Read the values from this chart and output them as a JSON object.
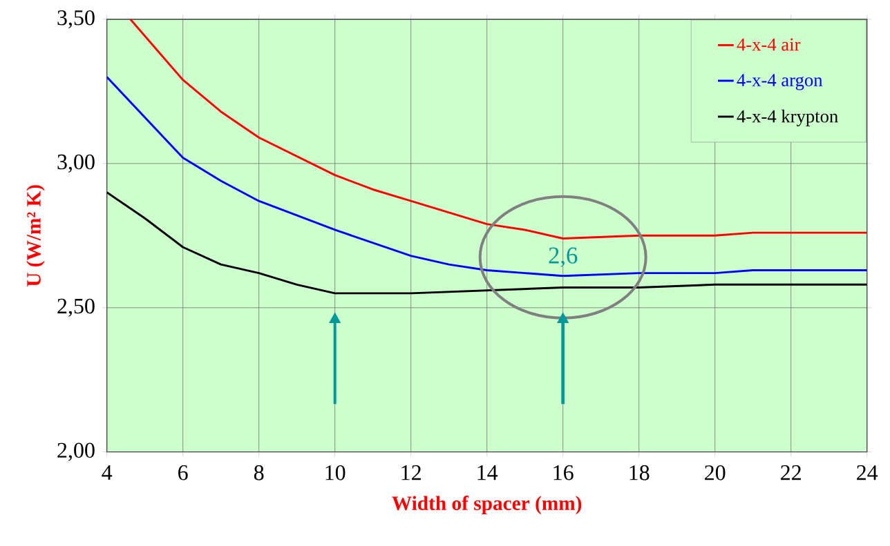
{
  "chart_data": {
    "type": "line",
    "xlabel": "Width of spacer (mm)",
    "ylabel": "U (W/m² K)",
    "series": [
      {
        "name": "4-x-4 air",
        "color": "#ff0000",
        "x": [
          4.62,
          6,
          7,
          8,
          10,
          11,
          12,
          14,
          15,
          16,
          18,
          20,
          21,
          22,
          24
        ],
        "values": [
          3.5,
          3.29,
          3.18,
          3.09,
          2.96,
          2.91,
          2.87,
          2.79,
          2.77,
          2.74,
          2.75,
          2.75,
          2.76,
          2.76,
          2.76
        ]
      },
      {
        "name": "4-x-4 argon",
        "color": "#0000ff",
        "x": [
          4,
          5,
          6,
          7,
          8,
          10,
          12,
          13,
          14,
          15,
          16,
          18,
          20,
          21,
          24
        ],
        "values": [
          3.3,
          3.16,
          3.02,
          2.94,
          2.87,
          2.77,
          2.68,
          2.65,
          2.63,
          2.62,
          2.61,
          2.62,
          2.62,
          2.63,
          2.63
        ]
      },
      {
        "name": "4-x-4 krypton",
        "color": "#000000",
        "x": [
          4,
          5,
          6,
          7,
          8,
          9,
          10,
          11,
          12,
          14,
          16,
          18,
          20,
          24
        ],
        "values": [
          2.9,
          2.81,
          2.71,
          2.65,
          2.62,
          2.58,
          2.55,
          2.55,
          2.55,
          2.56,
          2.57,
          2.57,
          2.58,
          2.58
        ]
      }
    ],
    "xlim": [
      4,
      24
    ],
    "ylim": [
      2.0,
      3.5
    ],
    "xticks": [
      4,
      6,
      8,
      10,
      12,
      14,
      16,
      18,
      20,
      22,
      24
    ],
    "yticks": [
      {
        "value": 2.0,
        "label": "2,00"
      },
      {
        "value": 2.5,
        "label": "2,50"
      },
      {
        "value": 3.0,
        "label": "3,00"
      },
      {
        "value": 3.5,
        "label": "3,50"
      }
    ],
    "grid": true,
    "legend": "top right",
    "marker": "none",
    "annotations": [
      "2,6"
    ]
  }
}
